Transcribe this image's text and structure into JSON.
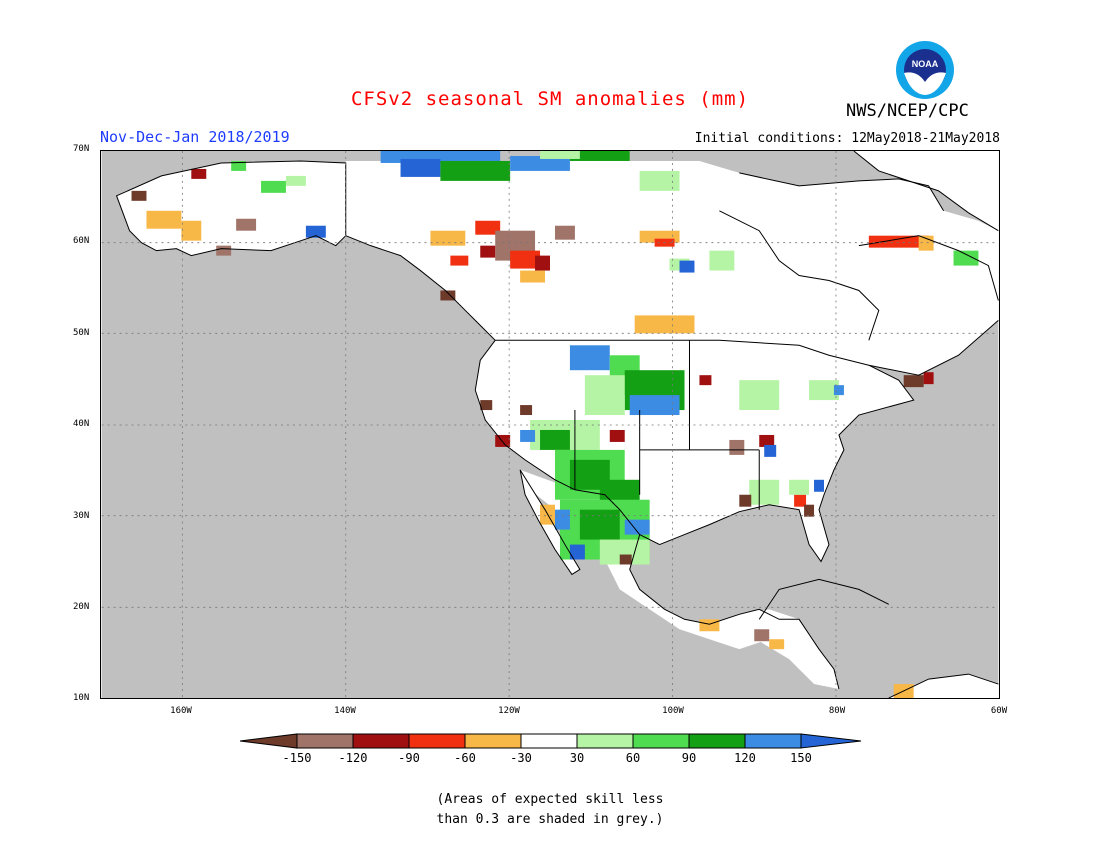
{
  "title": "CFSv2 seasonal SM anomalies (mm)",
  "period": "Nov-Dec-Jan 2018/2019",
  "initial_conditions": "Initial conditions: 12May2018-21May2018",
  "agency": "NWS/NCEP/CPC",
  "logo_text": "NOAA",
  "lat_labels": [
    "70N",
    "60N",
    "50N",
    "40N",
    "30N",
    "20N",
    "10N"
  ],
  "lon_labels": [
    "160W",
    "140W",
    "120W",
    "100W",
    "80W",
    "60W"
  ],
  "colorbar": {
    "colors": [
      "#6e3a2a",
      "#a07468",
      "#a01010",
      "#f03010",
      "#f8b848",
      "#ffffff",
      "#b4f4a4",
      "#50dc50",
      "#14a014",
      "#3c8ce4",
      "#2464d4"
    ],
    "ticks": [
      "-150",
      "-120",
      "-90",
      "-60",
      "-30",
      "30",
      "60",
      "90",
      "120",
      "150"
    ]
  },
  "note_line1": "(Areas of expected skill less",
  "note_line2": "than 0.3 are shaded in grey.)",
  "colors": {
    "title": "#ff0000",
    "period": "#1e3cff",
    "grey_mask": "#c0c0c0"
  }
}
